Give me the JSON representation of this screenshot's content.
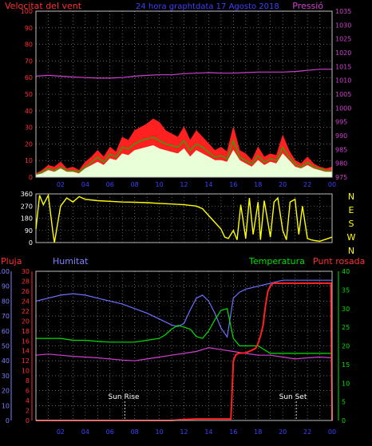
{
  "header": {
    "left_label": "Velocitat del vent",
    "title": "24 hora graphtdata 17 Agosto 2018",
    "right_label": "Pressió"
  },
  "colors": {
    "background": "#000000",
    "frame": "#c0c0c0",
    "grid": "#9a9a9a",
    "wind": "#ff2020",
    "gust_green": "#00c000",
    "wind_low": "#e8ffd8",
    "pressure": "#d040d0",
    "direction": "#ffff00",
    "humidity": "#7070ff",
    "temperature": "#00e000",
    "dewpoint": "#d040d0",
    "rain": "#ff2020",
    "left_axis_red": "#ff3030",
    "left_axis_blue": "#8080ff",
    "right_axis_green": "#00e000",
    "right_axis_magenta": "#d040d0",
    "title_blue": "#4040ff"
  },
  "x_ticks": [
    "02",
    "04",
    "06",
    "08",
    "10",
    "12",
    "14",
    "16",
    "18",
    "20",
    "22",
    "00"
  ],
  "chart_data": [
    {
      "type": "line",
      "name": "wind_pressure",
      "left_axis": {
        "label": "Velocitat del vent",
        "ticks": [
          "0",
          "10",
          "20",
          "30",
          "40",
          "50",
          "60",
          "70",
          "80",
          "90",
          "100"
        ],
        "ylim": [
          0,
          100
        ]
      },
      "right_axis": {
        "label": "Pressió",
        "ticks": [
          "975",
          "980",
          "985",
          "990",
          "995",
          "1000",
          "1005",
          "1010",
          "1015",
          "1020",
          "1025",
          "1030",
          "1035"
        ],
        "ylim": [
          975,
          1035
        ]
      },
      "x_range": [
        0,
        24
      ],
      "series": [
        {
          "key": "gust",
          "x": [
            0,
            0.5,
            1,
            1.5,
            2,
            2.5,
            3,
            3.5,
            4,
            4.5,
            5,
            5.5,
            6,
            6.5,
            7,
            7.5,
            8,
            8.5,
            9,
            9.5,
            10,
            10.5,
            11,
            11.5,
            12,
            12.5,
            13,
            13.5,
            14,
            14.5,
            15,
            15.5,
            16,
            16.5,
            17,
            17.5,
            18,
            18.5,
            19,
            19.5,
            20,
            20.5,
            21,
            21.5,
            22,
            22.5,
            23,
            23.5,
            24
          ],
          "values": [
            2,
            4,
            7,
            6,
            9,
            5,
            6,
            4,
            9,
            12,
            16,
            12,
            18,
            15,
            24,
            22,
            28,
            30,
            32,
            35,
            33,
            28,
            26,
            24,
            30,
            22,
            28,
            24,
            20,
            16,
            18,
            15,
            30,
            16,
            14,
            10,
            18,
            12,
            14,
            13,
            25,
            16,
            10,
            8,
            12,
            8,
            6,
            5,
            6
          ]
        },
        {
          "key": "wind_green",
          "x": [
            0,
            0.5,
            1,
            1.5,
            2,
            2.5,
            3,
            3.5,
            4,
            4.5,
            5,
            5.5,
            6,
            6.5,
            7,
            7.5,
            8,
            8.5,
            9,
            9.5,
            10,
            10.5,
            11,
            11.5,
            12,
            12.5,
            13,
            13.5,
            14,
            14.5,
            15,
            15.5,
            16,
            16.5,
            17,
            17.5,
            18,
            18.5,
            19,
            19.5,
            20,
            20.5,
            21,
            21.5,
            22,
            22.5,
            23,
            23.5,
            24
          ],
          "values": [
            1,
            3,
            5,
            4,
            6,
            4,
            4,
            3,
            6,
            9,
            12,
            9,
            14,
            12,
            18,
            17,
            20,
            22,
            23,
            24,
            22,
            20,
            19,
            18,
            22,
            16,
            20,
            18,
            15,
            12,
            13,
            11,
            22,
            12,
            10,
            8,
            13,
            9,
            11,
            10,
            18,
            12,
            8,
            6,
            9,
            6,
            5,
            4,
            4
          ]
        },
        {
          "key": "wind_low",
          "x": [
            0,
            0.5,
            1,
            1.5,
            2,
            2.5,
            3,
            3.5,
            4,
            4.5,
            5,
            5.5,
            6,
            6.5,
            7,
            7.5,
            8,
            8.5,
            9,
            9.5,
            10,
            10.5,
            11,
            11.5,
            12,
            12.5,
            13,
            13.5,
            14,
            14.5,
            15,
            15.5,
            16,
            16.5,
            17,
            17.5,
            18,
            18.5,
            19,
            19.5,
            20,
            20.5,
            21,
            21.5,
            22,
            22.5,
            23,
            23.5,
            24
          ],
          "values": [
            1,
            2,
            4,
            3,
            5,
            3,
            3,
            2,
            5,
            7,
            9,
            7,
            11,
            10,
            14,
            13,
            16,
            17,
            18,
            19,
            17,
            16,
            15,
            14,
            17,
            12,
            16,
            14,
            12,
            10,
            10,
            9,
            16,
            10,
            8,
            6,
            10,
            7,
            9,
            8,
            14,
            10,
            6,
            5,
            7,
            5,
            4,
            3,
            3
          ]
        },
        {
          "key": "pressure",
          "axis": "right",
          "x": [
            0,
            1,
            2,
            3,
            4,
            5,
            6,
            7,
            8,
            9,
            10,
            11,
            12,
            13,
            14,
            15,
            16,
            17,
            18,
            19,
            20,
            21,
            22,
            23,
            24
          ],
          "values": [
            1011.5,
            1011.8,
            1011.5,
            1011.2,
            1011,
            1010.8,
            1010.8,
            1011,
            1011.5,
            1011.8,
            1012,
            1012,
            1012.4,
            1012.6,
            1012.8,
            1012.6,
            1012.6,
            1012.8,
            1013,
            1013,
            1013,
            1013.2,
            1013.6,
            1014,
            1014
          ]
        }
      ]
    },
    {
      "type": "line",
      "name": "wind_direction",
      "left_axis": {
        "ticks": [
          "0",
          "90",
          "180",
          "270",
          "360"
        ],
        "ylim": [
          0,
          360
        ]
      },
      "right_axis": {
        "ticks": [
          "N",
          "W",
          "S",
          "E",
          "N"
        ]
      },
      "x_range": [
        0,
        24
      ],
      "series": [
        {
          "key": "direction",
          "x": [
            0,
            0.3,
            0.6,
            1,
            1.4,
            1.5,
            2,
            2.5,
            3,
            3.5,
            4,
            5,
            6,
            7,
            8,
            9,
            10,
            11,
            12,
            13,
            13.5,
            14,
            14.5,
            15,
            15.3,
            15.6,
            16,
            16.3,
            16.6,
            17,
            17.3,
            17.6,
            18,
            18.2,
            18.5,
            18.8,
            19,
            19.3,
            19.6,
            20,
            20.3,
            20.6,
            21,
            21.3,
            21.6,
            22,
            22.3,
            22.6,
            23,
            23.5,
            24
          ],
          "values": [
            100,
            350,
            280,
            350,
            60,
            0,
            270,
            330,
            300,
            340,
            320,
            310,
            305,
            300,
            298,
            295,
            290,
            285,
            280,
            270,
            250,
            200,
            150,
            100,
            40,
            30,
            90,
            20,
            280,
            30,
            330,
            60,
            300,
            20,
            310,
            150,
            40,
            300,
            330,
            90,
            20,
            300,
            320,
            60,
            270,
            30,
            20,
            15,
            10,
            25,
            40
          ]
        }
      ]
    },
    {
      "type": "line",
      "name": "temp_hum",
      "left_label": "Pluja",
      "left_label2": "Humitat",
      "right_label": "Temperatura",
      "right_label2": "Punt rosada",
      "left_axis_rain": {
        "ticks": [
          "0",
          "2",
          "4",
          "6",
          "8",
          "10",
          "12",
          "14",
          "16",
          "18",
          "20",
          "22",
          "24",
          "26",
          "28",
          "30"
        ],
        "ylim": [
          0,
          30
        ]
      },
      "left_axis_hum": {
        "ticks": [
          "0",
          "10",
          "20",
          "30",
          "40",
          "50",
          "60",
          "70",
          "80",
          "90",
          "100"
        ],
        "ylim": [
          0,
          100
        ]
      },
      "right_axis": {
        "ticks": [
          "0",
          "5",
          "10",
          "15",
          "20",
          "25",
          "30",
          "35",
          "40"
        ],
        "ylim": [
          0,
          40
        ]
      },
      "x_range": [
        0,
        24
      ],
      "annotations": [
        {
          "label": "Sun Rise",
          "x": 7.2
        },
        {
          "label": "Sun Set",
          "x": 21.1
        }
      ],
      "series": [
        {
          "key": "humidity",
          "axis": "hum",
          "x": [
            0,
            1,
            2,
            3,
            4,
            5,
            6,
            7,
            8,
            9,
            10,
            11,
            11.5,
            12,
            12.5,
            13,
            13.5,
            14,
            14.5,
            15,
            15.5,
            16,
            16.5,
            17,
            18,
            19,
            20,
            21,
            22,
            23,
            24
          ],
          "values": [
            80,
            82,
            84,
            85,
            84,
            82,
            80,
            78,
            75,
            72,
            68,
            64,
            63,
            65,
            74,
            82,
            84,
            80,
            72,
            62,
            56,
            82,
            86,
            88,
            90,
            92,
            94,
            94,
            94,
            94,
            94
          ]
        },
        {
          "key": "temperature",
          "axis": "right",
          "x": [
            0,
            1,
            2,
            3,
            4,
            5,
            6,
            7,
            8,
            9,
            10,
            10.5,
            11,
            11.5,
            12,
            12.5,
            13,
            13.5,
            14,
            14.5,
            15,
            15.5,
            16,
            16.5,
            17,
            17.5,
            18,
            18.5,
            19,
            20,
            21,
            22,
            23,
            24
          ],
          "values": [
            22,
            22,
            22,
            21.5,
            21.5,
            21.2,
            21,
            21,
            21,
            21.5,
            22,
            23,
            24.5,
            25.5,
            25,
            24.5,
            22.5,
            22,
            24,
            27,
            29.5,
            30,
            22,
            20,
            20,
            20,
            20,
            19,
            18,
            18,
            18,
            18,
            18,
            18
          ]
        },
        {
          "key": "dewpoint",
          "axis": "right",
          "x": [
            0,
            1,
            2,
            3,
            4,
            5,
            6,
            7,
            8,
            9,
            10,
            11,
            12,
            13,
            14,
            15,
            16,
            17,
            18,
            19,
            20,
            21,
            22,
            23,
            24
          ],
          "values": [
            17.5,
            17.8,
            17.5,
            17.2,
            17,
            16.8,
            16.5,
            16.2,
            16,
            16.5,
            17,
            17.5,
            18,
            18.5,
            19.5,
            19,
            18.5,
            18,
            17.5,
            17.5,
            17,
            16.5,
            16.8,
            17,
            16.8
          ]
        },
        {
          "key": "rain",
          "axis": "rain",
          "x": [
            0,
            6,
            10,
            11,
            12,
            13,
            14,
            15,
            15.8,
            15.9,
            16,
            16.2,
            16.4,
            17,
            17.4,
            17.8,
            18,
            18.2,
            18.4,
            18.6,
            18.8,
            19,
            19.2,
            20,
            21,
            22,
            23,
            23.9,
            24
          ],
          "values": [
            0,
            0,
            0,
            0,
            0.2,
            0.3,
            0.3,
            0.3,
            0.3,
            6,
            12,
            13.2,
            13.5,
            13.6,
            14,
            14.5,
            15.5,
            17,
            19,
            23,
            26,
            27,
            27.6,
            27.6,
            27.6,
            27.6,
            27.6,
            27.6,
            0
          ]
        }
      ]
    }
  ]
}
